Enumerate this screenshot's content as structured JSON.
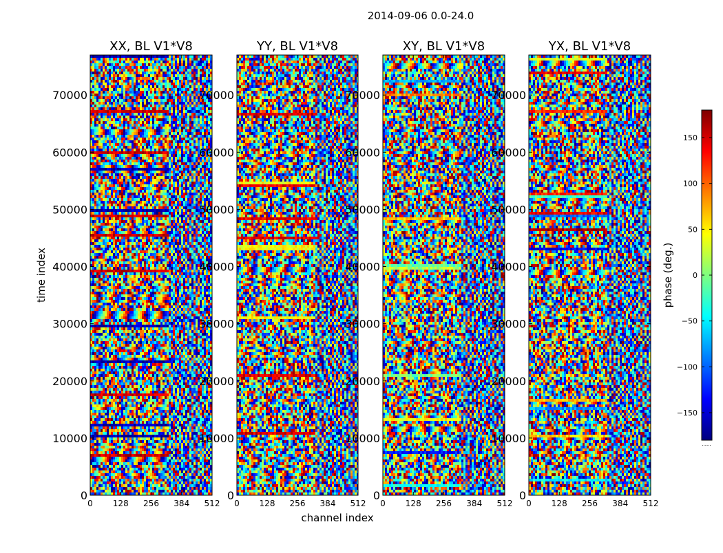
{
  "chart_data": {
    "type": "heatmap",
    "title": "2014-09-06 0.0-24.0",
    "xlabel": "channel index",
    "ylabel": "time index",
    "xlim": [
      0,
      512
    ],
    "ylim": [
      0,
      77000
    ],
    "x_ticks": [
      0,
      128,
      256,
      384,
      512
    ],
    "y_ticks": [
      0,
      10000,
      20000,
      30000,
      40000,
      50000,
      60000,
      70000
    ],
    "panels": [
      {
        "title": "XX, BL V1*V8",
        "colormap": "jet",
        "bias": "blue"
      },
      {
        "title": "YY, BL V1*V8",
        "colormap": "jet",
        "bias": "yellow"
      },
      {
        "title": "XY, BL V1*V8",
        "colormap": "jet",
        "bias": "mixed"
      },
      {
        "title": "YX, BL V1*V8",
        "colormap": "jet",
        "bias": "mixed"
      }
    ],
    "colorbar": {
      "label": "phase (deg.)",
      "range": [
        -180,
        180
      ],
      "ticks": [
        -150,
        -100,
        -50,
        0,
        50,
        100,
        150
      ],
      "tick_labels": [
        "−150",
        "−100",
        "−50",
        "0",
        "50",
        "100",
        "150"
      ],
      "colors": [
        "#00007f",
        "#0000ff",
        "#007fff",
        "#00ffff",
        "#7fff7f",
        "#ffff00",
        "#ff7f00",
        "#ff0000",
        "#7f0000"
      ]
    },
    "colorbar_extra_label": "......"
  }
}
